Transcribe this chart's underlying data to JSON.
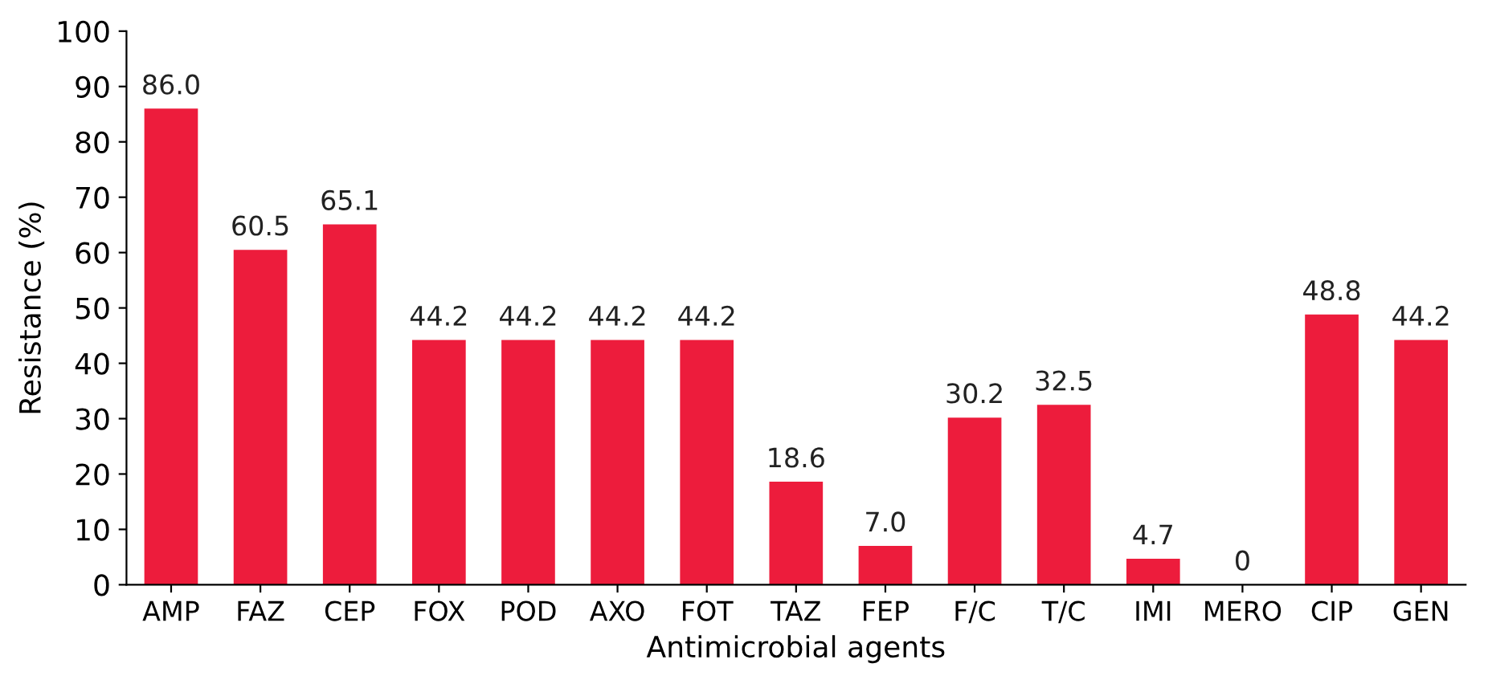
{
  "chart_data": {
    "type": "bar",
    "xlabel": "Antimicrobial agents",
    "ylabel": "Resistance (%)",
    "categories": [
      "AMP",
      "FAZ",
      "CEP",
      "FOX",
      "POD",
      "AXO",
      "FOT",
      "TAZ",
      "FEP",
      "F/C",
      "T/C",
      "IMI",
      "MERO",
      "CIP",
      "GEN"
    ],
    "values": [
      86.0,
      60.5,
      65.1,
      44.2,
      44.2,
      44.2,
      44.2,
      18.6,
      7.0,
      30.2,
      32.5,
      4.7,
      0,
      48.8,
      44.2
    ],
    "value_labels": [
      "86.0",
      "60.5",
      "65.1",
      "44.2",
      "44.2",
      "44.2",
      "44.2",
      "18.6",
      "7.0",
      "30.2",
      "32.5",
      "4.7",
      "0",
      "48.8",
      "44.2"
    ],
    "color": "#ed1c3c",
    "ylim": [
      0,
      100
    ],
    "yticks": [
      0,
      10,
      20,
      30,
      40,
      50,
      60,
      70,
      80,
      90,
      100
    ],
    "grid": false
  }
}
